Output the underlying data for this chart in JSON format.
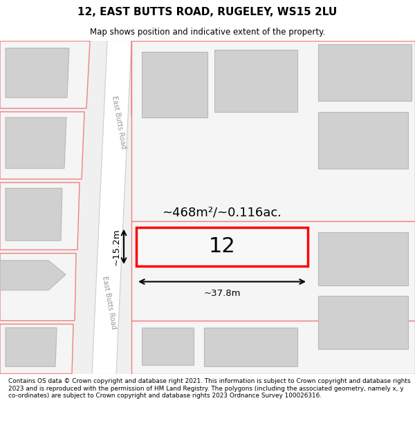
{
  "title": "12, EAST BUTTS ROAD, RUGELEY, WS15 2LU",
  "subtitle": "Map shows position and indicative extent of the property.",
  "footer": "Contains OS data © Crown copyright and database right 2021. This information is subject to Crown copyright and database rights 2023 and is reproduced with the permission of HM Land Registry. The polygons (including the associated geometry, namely x, y co-ordinates) are subject to Crown copyright and database rights 2023 Ordnance Survey 100026316.",
  "area_text": "~468m²/~0.116ac.",
  "number_text": "12",
  "dim_width": "~37.8m",
  "dim_height": "~15.2m",
  "road_label_top": "East Butts Road",
  "road_label_bottom": "East Butts Road",
  "map_bg": "#f0f0f0",
  "road_fill": "#ffffff",
  "parcel_fill": "#f5f5f5",
  "parcel_edge": "#f08080",
  "building_fill": "#d0d0d0",
  "building_edge": "#b8b8b8",
  "highlight_fill": "#f8f8f8",
  "highlight_edge": "#ff0000"
}
